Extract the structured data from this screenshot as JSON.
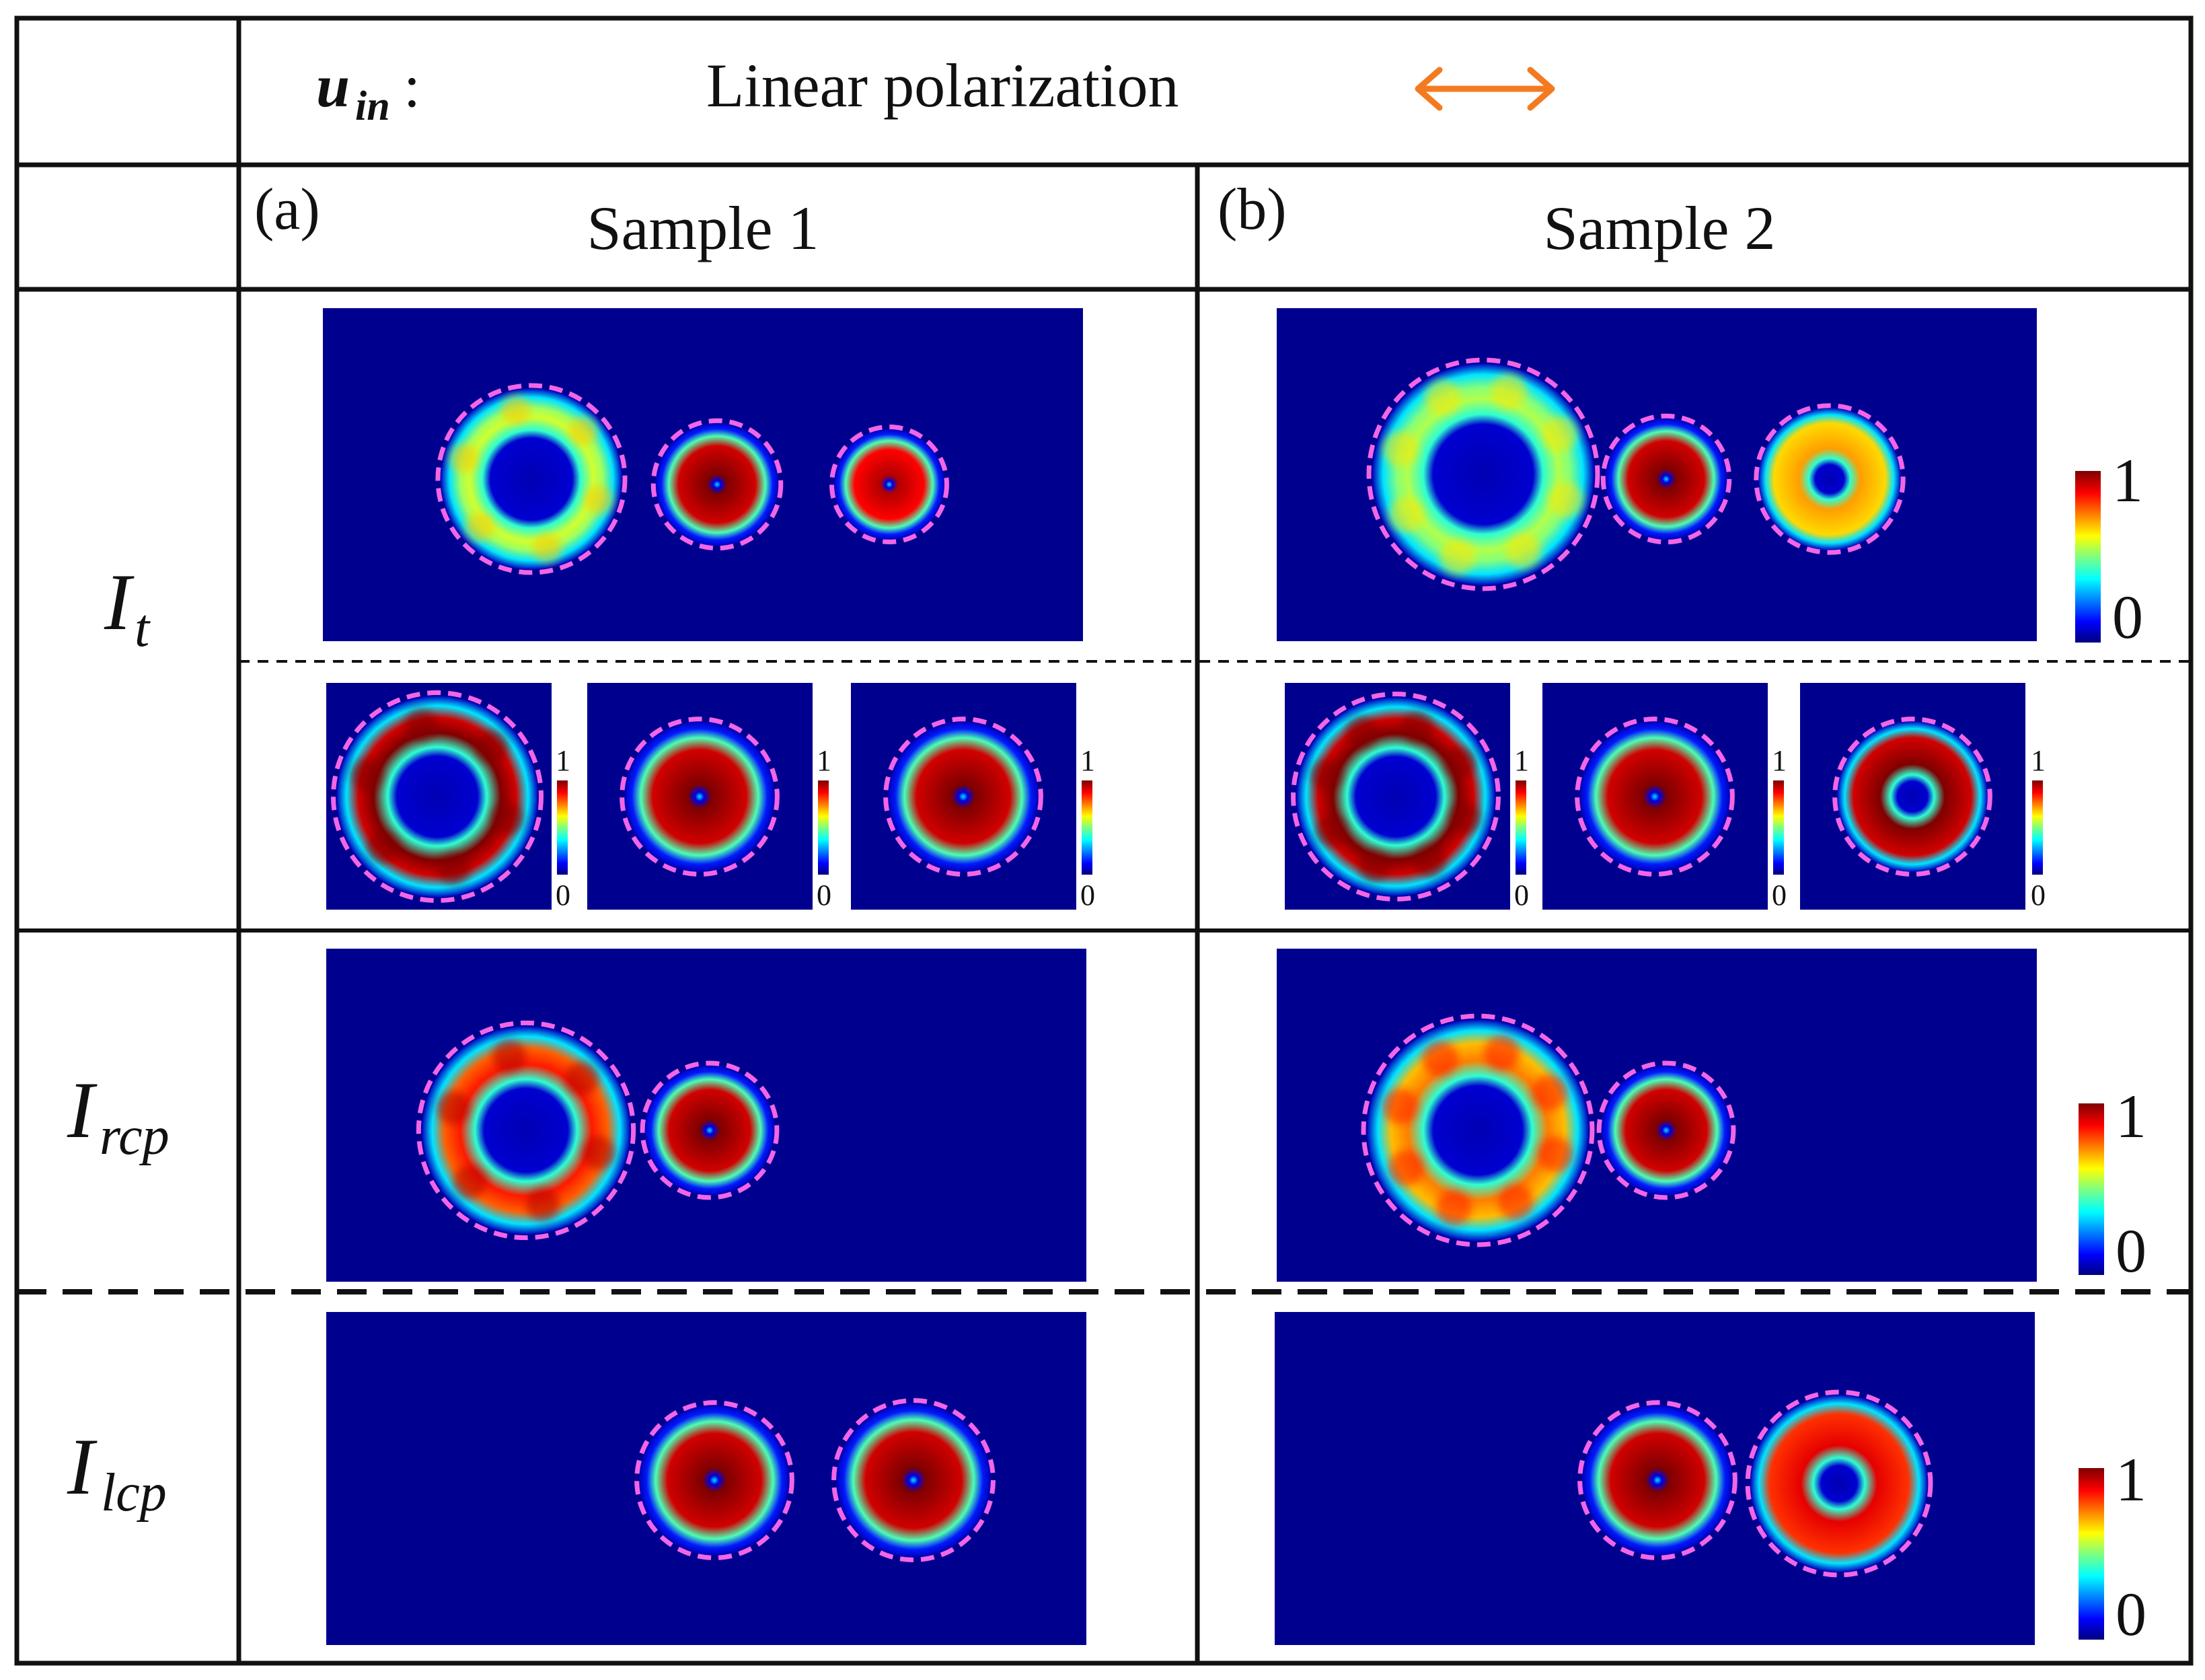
{
  "header": {
    "var_main": "u",
    "var_sub": "in",
    "colon": ":",
    "polarization_label": "Linear polarization",
    "arrow_icon": "double-headed-arrow-icon",
    "arrow_color": "#F47A20"
  },
  "columns": [
    {
      "tag": "(a)",
      "title": "Sample 1"
    },
    {
      "tag": "(b)",
      "title": "Sample 2"
    }
  ],
  "rows": {
    "it": {
      "main": "I",
      "sub": "t"
    },
    "rcp": {
      "main": "I",
      "sub": "rcp"
    },
    "lcp": {
      "main": "I",
      "sub": "lcp"
    }
  },
  "colorbar": {
    "max_label": "1",
    "min_label": "0"
  },
  "colors": {
    "field": "#00008F",
    "dashed_circle": "#F266E6",
    "frame": "#111111",
    "jet": [
      "#00007F",
      "#0000FF",
      "#007FFF",
      "#00FFFF",
      "#7FFF7F",
      "#FFFF00",
      "#FF7F00",
      "#FF0000",
      "#7F0000"
    ]
  },
  "panels": [
    {
      "id": "a-it",
      "rings": [
        {
          "hole": 0.5,
          "peak": 0.58,
          "lobes": 6
        },
        {
          "hole": 0.05,
          "peak": 1
        },
        {
          "hole": 0.05,
          "peak": 0.95
        }
      ]
    },
    {
      "id": "b-it",
      "rings": [
        {
          "hole": 0.5,
          "peak": 0.55,
          "lobes": 8
        },
        {
          "hole": 0.05,
          "peak": 1
        },
        {
          "hole": 0.25,
          "peak": 0.72
        }
      ]
    },
    {
      "id": "a-it-n",
      "rings": [
        {
          "hole": 0.45,
          "peak": 1,
          "lobes": 6
        },
        {
          "hole": 0.05,
          "peak": 1
        },
        {
          "hole": 0.05,
          "peak": 1
        }
      ]
    },
    {
      "id": "b-it-n",
      "rings": [
        {
          "hole": 0.45,
          "peak": 1,
          "lobes": 8
        },
        {
          "hole": 0.05,
          "peak": 1
        },
        {
          "hole": 0.25,
          "peak": 1
        }
      ]
    },
    {
      "id": "a-rcp",
      "rings": [
        {
          "hole": 0.45,
          "peak": 0.85,
          "lobes": 6
        },
        {
          "hole": 0.05,
          "peak": 1
        }
      ]
    },
    {
      "id": "b-rcp",
      "rings": [
        {
          "hole": 0.45,
          "peak": 0.75,
          "lobes": 8
        },
        {
          "hole": 0.05,
          "peak": 1
        }
      ]
    },
    {
      "id": "a-lcp",
      "rings": [
        {
          "hole": 0.05,
          "peak": 1
        },
        {
          "hole": 0.05,
          "peak": 1
        }
      ]
    },
    {
      "id": "b-lcp",
      "rings": [
        {
          "hole": 0.05,
          "peak": 1
        },
        {
          "hole": 0.25,
          "peak": 0.9
        }
      ]
    }
  ]
}
